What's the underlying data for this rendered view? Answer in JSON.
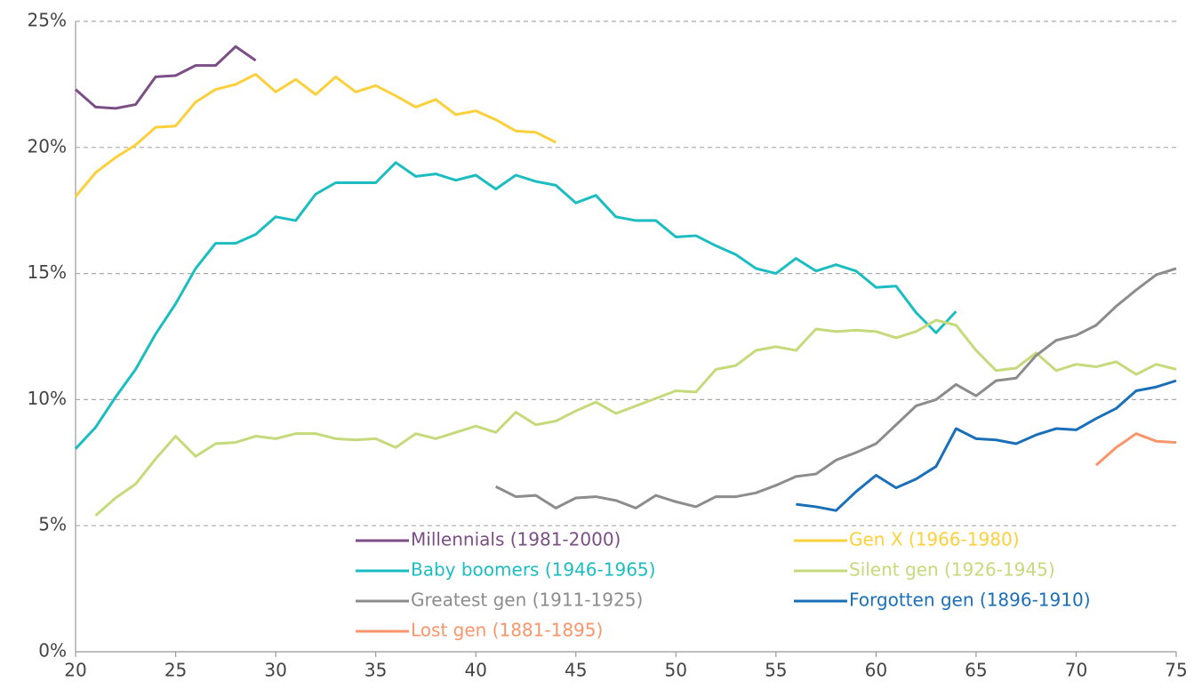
{
  "chart_data": {
    "type": "line",
    "x": [
      20,
      21,
      22,
      23,
      24,
      25,
      26,
      27,
      28,
      29,
      30,
      31,
      32,
      33,
      34,
      35,
      36,
      37,
      38,
      39,
      40,
      41,
      42,
      43,
      44,
      45,
      46,
      47,
      48,
      49,
      50,
      51,
      52,
      53,
      54,
      55,
      56,
      57,
      58,
      59,
      60,
      61,
      62,
      63,
      64,
      65,
      66,
      67,
      68,
      69,
      70,
      71,
      72,
      73,
      74,
      75
    ],
    "xlim": [
      20,
      75
    ],
    "xticks": [
      20,
      25,
      30,
      35,
      40,
      45,
      50,
      55,
      60,
      65,
      70,
      75
    ],
    "ylim": [
      0,
      25
    ],
    "yticks": [
      {
        "value": 0,
        "label": "0%"
      },
      {
        "value": 5,
        "label": "5%"
      },
      {
        "value": 10,
        "label": "10%"
      },
      {
        "value": 15,
        "label": "15%"
      },
      {
        "value": 20,
        "label": "20%"
      },
      {
        "value": 25,
        "label": "25%"
      }
    ],
    "grid": true,
    "series": [
      {
        "name": "Millennials (1981-2000)",
        "color": "#7b4f86",
        "values": [
          22.3,
          21.6,
          21.55,
          21.7,
          22.8,
          22.85,
          23.25,
          23.25,
          24.0,
          23.45,
          null,
          null,
          null,
          null,
          null,
          null,
          null,
          null,
          null,
          null,
          null,
          null,
          null,
          null,
          null,
          null,
          null,
          null,
          null,
          null,
          null,
          null,
          null,
          null,
          null,
          null,
          null,
          null,
          null,
          null,
          null,
          null,
          null,
          null,
          null,
          null,
          null,
          null,
          null,
          null,
          null,
          null,
          null,
          null,
          null,
          null
        ]
      },
      {
        "name": "Gen X (1966-1980)",
        "color": "#fbd03a",
        "values": [
          18.05,
          19.0,
          19.6,
          20.1,
          20.8,
          20.85,
          21.8,
          22.3,
          22.5,
          22.9,
          22.2,
          22.7,
          22.1,
          22.8,
          22.2,
          22.45,
          22.05,
          21.6,
          21.9,
          21.3,
          21.45,
          21.1,
          20.65,
          20.6,
          20.2,
          null,
          null,
          null,
          null,
          null,
          null,
          null,
          null,
          null,
          null,
          null,
          null,
          null,
          null,
          null,
          null,
          null,
          null,
          null,
          null,
          null,
          null,
          null,
          null,
          null,
          null,
          null,
          null,
          null,
          null,
          null
        ]
      },
      {
        "name": "Baby boomers (1946-1965)",
        "color": "#1bbdc1",
        "values": [
          8.05,
          8.9,
          10.1,
          11.2,
          12.6,
          13.8,
          15.2,
          16.2,
          16.2,
          16.55,
          17.25,
          17.1,
          18.15,
          18.6,
          18.6,
          18.6,
          19.4,
          18.85,
          18.95,
          18.7,
          18.9,
          18.35,
          18.9,
          18.65,
          18.5,
          17.8,
          18.1,
          17.25,
          17.1,
          17.1,
          16.45,
          16.5,
          16.1,
          15.75,
          15.2,
          15.0,
          15.6,
          15.1,
          15.35,
          15.1,
          14.45,
          14.5,
          13.45,
          12.65,
          13.5,
          null,
          null,
          null,
          null,
          null,
          null,
          null,
          null,
          null,
          null,
          null
        ]
      },
      {
        "name": "Silent gen (1926-1945)",
        "color": "#c5da7a",
        "values": [
          null,
          5.4,
          6.1,
          6.65,
          7.65,
          8.55,
          7.75,
          8.25,
          8.3,
          8.55,
          8.45,
          8.65,
          8.65,
          8.45,
          8.4,
          8.45,
          8.1,
          8.65,
          8.45,
          8.7,
          8.95,
          8.7,
          9.5,
          9.0,
          9.15,
          9.55,
          9.9,
          9.45,
          9.75,
          10.05,
          10.35,
          10.3,
          11.2,
          11.35,
          11.95,
          12.1,
          11.95,
          12.8,
          12.7,
          12.75,
          12.7,
          12.45,
          12.7,
          13.15,
          12.95,
          11.95,
          11.15,
          11.25,
          11.85,
          11.15,
          11.4,
          11.3,
          11.5,
          11.0,
          11.4,
          11.2
        ]
      },
      {
        "name": "Greatest gen (1911-1925)",
        "color": "#8c8c8c",
        "values": [
          null,
          null,
          null,
          null,
          null,
          null,
          null,
          null,
          null,
          null,
          null,
          null,
          null,
          null,
          null,
          null,
          null,
          null,
          null,
          null,
          null,
          6.55,
          6.15,
          6.2,
          5.7,
          6.1,
          6.15,
          6.0,
          5.7,
          6.2,
          5.95,
          5.75,
          6.15,
          6.15,
          6.3,
          6.6,
          6.95,
          7.05,
          7.6,
          7.9,
          8.25,
          9.0,
          9.75,
          10.0,
          10.6,
          10.15,
          10.75,
          10.85,
          11.75,
          12.35,
          12.55,
          12.95,
          13.7,
          14.35,
          14.95,
          15.2
        ]
      },
      {
        "name": "Forgotten gen (1896-1910)",
        "color": "#1a6fb9",
        "values": [
          null,
          null,
          null,
          null,
          null,
          null,
          null,
          null,
          null,
          null,
          null,
          null,
          null,
          null,
          null,
          null,
          null,
          null,
          null,
          null,
          null,
          null,
          null,
          null,
          null,
          null,
          null,
          null,
          null,
          null,
          null,
          null,
          null,
          null,
          null,
          null,
          5.85,
          5.75,
          5.6,
          6.35,
          7.0,
          6.5,
          6.85,
          7.35,
          8.85,
          8.45,
          8.4,
          8.25,
          8.6,
          8.85,
          8.8,
          9.25,
          9.65,
          10.35,
          10.5,
          10.75
        ]
      },
      {
        "name": "Lost gen (1881-1895)",
        "color": "#f9956b",
        "values": [
          null,
          null,
          null,
          null,
          null,
          null,
          null,
          null,
          null,
          null,
          null,
          null,
          null,
          null,
          null,
          null,
          null,
          null,
          null,
          null,
          null,
          null,
          null,
          null,
          null,
          null,
          null,
          null,
          null,
          null,
          null,
          null,
          null,
          null,
          null,
          null,
          null,
          null,
          null,
          null,
          null,
          null,
          null,
          null,
          null,
          null,
          null,
          null,
          null,
          null,
          null,
          7.4,
          8.1,
          8.65,
          8.35,
          8.3
        ]
      }
    ]
  }
}
